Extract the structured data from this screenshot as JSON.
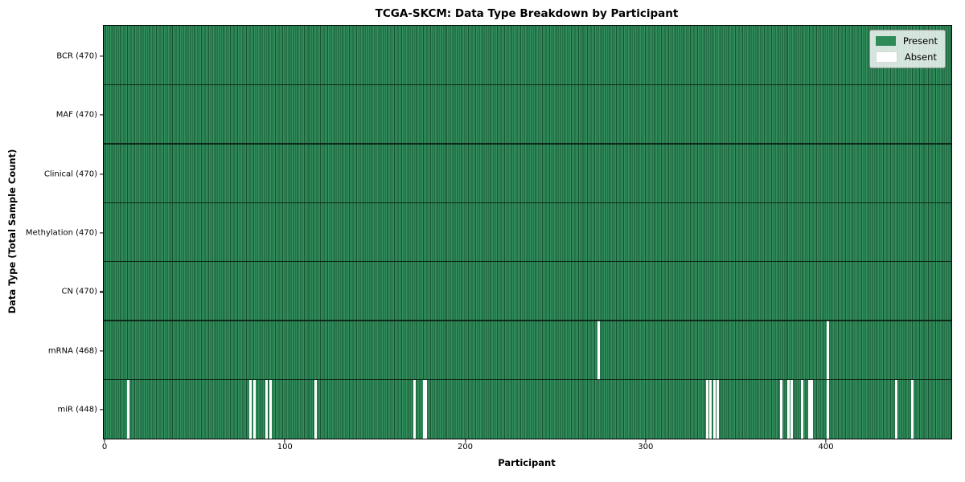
{
  "chart_data": {
    "type": "heatmap",
    "title": "TCGA-SKCM: Data Type Breakdown by Participant",
    "xlabel": "Participant",
    "ylabel": "Data Type (Total Sample Count)",
    "xlim": [
      0,
      470
    ],
    "x_ticks": [
      0,
      100,
      200,
      300,
      400
    ],
    "n_participants": 470,
    "grid": false,
    "legend_position": "upper-right",
    "legend": [
      {
        "label": "Present",
        "color": "#2e8b57"
      },
      {
        "label": "Absent",
        "color": "#ffffff"
      }
    ],
    "colors": {
      "present_fill": "#2e8b57",
      "present_stripe_edge": "#175232",
      "absent_fill": "#ffffff",
      "row_divider": "#081a0f",
      "frame": "#000000",
      "legend_background": "#e9ece9"
    },
    "rows": [
      {
        "data_type": "BCR",
        "label": "BCR (470)",
        "present_count": 470,
        "absent_participants": []
      },
      {
        "data_type": "MAF",
        "label": "MAF (470)",
        "present_count": 470,
        "absent_participants": []
      },
      {
        "data_type": "Clinical",
        "label": "Clinical (470)",
        "present_count": 470,
        "absent_participants": []
      },
      {
        "data_type": "Methylation",
        "label": "Methylation (470)",
        "present_count": 470,
        "absent_participants": []
      },
      {
        "data_type": "CN",
        "label": "CN (470)",
        "present_count": 470,
        "absent_participants": []
      },
      {
        "data_type": "mRNA",
        "label": "mRNA (468)",
        "present_count": 468,
        "absent_participants": [
          274,
          401
        ]
      },
      {
        "data_type": "miR",
        "label": "miR (448)",
        "present_count": 448,
        "absent_participants": [
          13,
          81,
          83,
          90,
          92,
          117,
          172,
          177,
          178,
          334,
          336,
          338,
          340,
          375,
          379,
          381,
          387,
          391,
          392,
          401,
          439,
          448
        ]
      }
    ]
  }
}
